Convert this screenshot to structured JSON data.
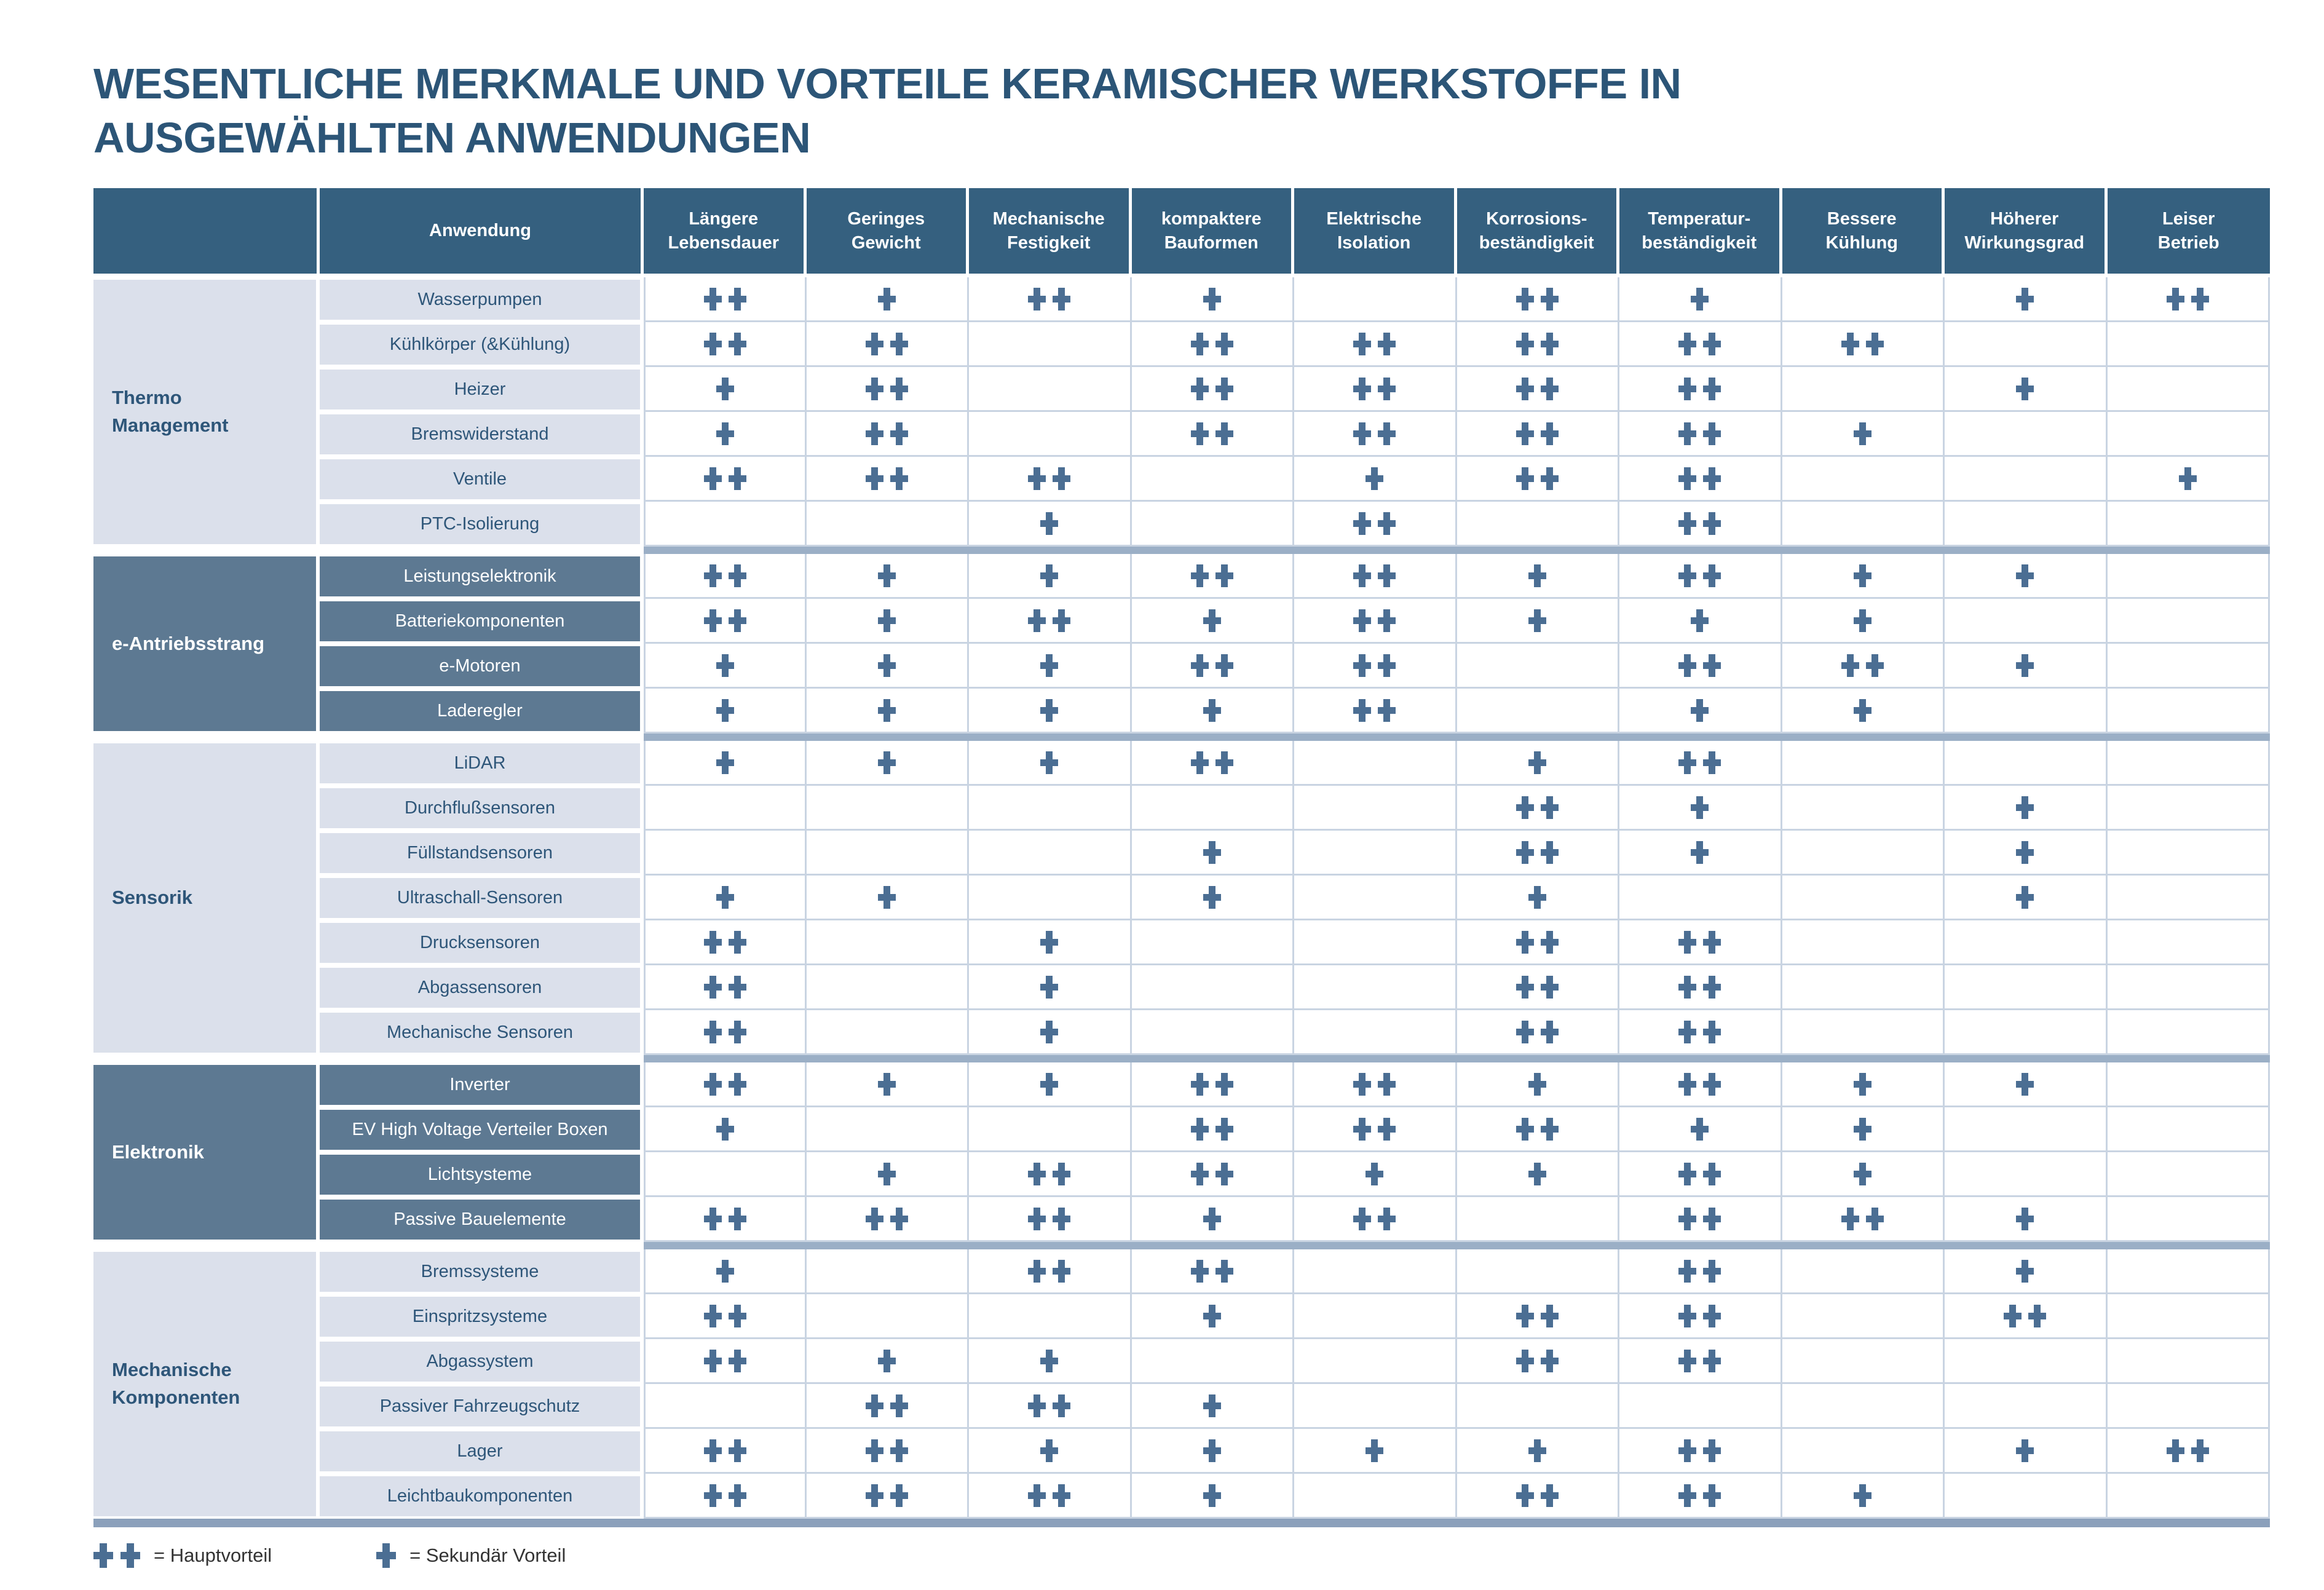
{
  "title": "WESENTLICHE MERKMALE UND VORTEILE KERAMISCHER WERKSTOFFE IN AUSGEWÄHLTEN ANWENDUNGEN",
  "table": {
    "application_header": "Anwendung",
    "feature_columns": [
      "Längere\nLebensdauer",
      "Geringes\nGewicht",
      "Mechanische\nFestigkeit",
      "kompaktere\nBauformen",
      "Elektrische\nIsolation",
      "Korrosions-\nbeständigkeit",
      "Temperatur-\nbeständigkeit",
      "Bessere\nKühlung",
      "Höherer\nWirkungsgrad",
      "Leiser\nBetrieb"
    ],
    "groups": [
      {
        "name": "Thermo\nManagement",
        "style": "light",
        "rows": [
          {
            "application": "Wasserpumpen",
            "values": [
              "++",
              "+",
              "++",
              "+",
              "",
              "++",
              "+",
              "",
              "+",
              "++"
            ]
          },
          {
            "application": "Kühlkörper (&Kühlung)",
            "values": [
              "++",
              "++",
              "",
              "++",
              "++",
              "++",
              "++",
              "++",
              "",
              ""
            ]
          },
          {
            "application": "Heizer",
            "values": [
              "+",
              "++",
              "",
              "++",
              "++",
              "++",
              "++",
              "",
              "+",
              ""
            ]
          },
          {
            "application": "Bremswiderstand",
            "values": [
              "+",
              "++",
              "",
              "++",
              "++",
              "++",
              "++",
              "+",
              "",
              ""
            ]
          },
          {
            "application": "Ventile",
            "values": [
              "++",
              "++",
              "++",
              "",
              "+",
              "++",
              "++",
              "",
              "",
              "+"
            ]
          },
          {
            "application": "PTC-Isolierung",
            "values": [
              "",
              "",
              "+",
              "",
              "++",
              "",
              "++",
              "",
              "",
              ""
            ]
          }
        ]
      },
      {
        "name": "e-Antriebsstrang",
        "style": "dark",
        "rows": [
          {
            "application": "Leistungselektronik",
            "values": [
              "++",
              "+",
              "+",
              "++",
              "++",
              "+",
              "++",
              "+",
              "+",
              ""
            ]
          },
          {
            "application": "Batteriekomponenten",
            "values": [
              "++",
              "+",
              "++",
              "+",
              "++",
              "+",
              "+",
              "+",
              "",
              ""
            ]
          },
          {
            "application": "e-Motoren",
            "values": [
              "+",
              "+",
              "+",
              "++",
              "++",
              "",
              "++",
              "++",
              "+",
              ""
            ]
          },
          {
            "application": "Laderegler",
            "values": [
              "+",
              "+",
              "+",
              "+",
              "++",
              "",
              "+",
              "+",
              "",
              ""
            ]
          }
        ]
      },
      {
        "name": "Sensorik",
        "style": "light",
        "rows": [
          {
            "application": "LiDAR",
            "values": [
              "+",
              "+",
              "+",
              "++",
              "",
              "+",
              "++",
              "",
              "",
              ""
            ]
          },
          {
            "application": "Durchflußsensoren",
            "values": [
              "",
              "",
              "",
              "",
              "",
              "++",
              "+",
              "",
              "+",
              ""
            ]
          },
          {
            "application": "Füllstandsensoren",
            "values": [
              "",
              "",
              "",
              "+",
              "",
              "++",
              "+",
              "",
              "+",
              ""
            ]
          },
          {
            "application": "Ultraschall-Sensoren",
            "values": [
              "+",
              "+",
              "",
              "+",
              "",
              "+",
              "",
              "",
              "+",
              ""
            ]
          },
          {
            "application": "Drucksensoren",
            "values": [
              "++",
              "",
              "+",
              "",
              "",
              "++",
              "++",
              "",
              "",
              ""
            ]
          },
          {
            "application": "Abgassensoren",
            "values": [
              "++",
              "",
              "+",
              "",
              "",
              "++",
              "++",
              "",
              "",
              ""
            ]
          },
          {
            "application": "Mechanische Sensoren",
            "values": [
              "++",
              "",
              "+",
              "",
              "",
              "++",
              "++",
              "",
              "",
              ""
            ]
          }
        ]
      },
      {
        "name": "Elektronik",
        "style": "dark",
        "rows": [
          {
            "application": "Inverter",
            "values": [
              "++",
              "+",
              "+",
              "++",
              "++",
              "+",
              "++",
              "+",
              "+",
              ""
            ]
          },
          {
            "application": "EV High Voltage Verteiler Boxen",
            "values": [
              "+",
              "",
              "",
              "++",
              "++",
              "++",
              "+",
              "+",
              "",
              ""
            ]
          },
          {
            "application": "Lichtsysteme",
            "values": [
              "",
              "+",
              "++",
              "++",
              "+",
              "+",
              "++",
              "+",
              "",
              ""
            ]
          },
          {
            "application": "Passive Bauelemente",
            "values": [
              "++",
              "++",
              "++",
              "+",
              "++",
              "",
              "++",
              "++",
              "+",
              ""
            ]
          }
        ]
      },
      {
        "name": "Mechanische\nKomponenten",
        "style": "light",
        "rows": [
          {
            "application": "Bremssysteme",
            "values": [
              "+",
              "",
              "++",
              "++",
              "",
              "",
              "++",
              "",
              "+",
              ""
            ]
          },
          {
            "application": "Einspritzsysteme",
            "values": [
              "++",
              "",
              "",
              "+",
              "",
              "++",
              "++",
              "",
              "++",
              ""
            ]
          },
          {
            "application": "Abgassystem",
            "values": [
              "++",
              "+",
              "+",
              "",
              "",
              "++",
              "++",
              "",
              "",
              ""
            ]
          },
          {
            "application": "Passiver Fahrzeugschutz",
            "values": [
              "",
              "++",
              "++",
              "+",
              "",
              "",
              "",
              "",
              "",
              ""
            ]
          },
          {
            "application": "Lager",
            "values": [
              "++",
              "++",
              "+",
              "+",
              "+",
              "+",
              "++",
              "",
              "+",
              "++"
            ]
          },
          {
            "application": "Leichtbaukomponenten",
            "values": [
              "++",
              "++",
              "++",
              "+",
              "",
              "++",
              "++",
              "+",
              "",
              ""
            ]
          }
        ]
      }
    ]
  },
  "legend": [
    {
      "symbol": "++",
      "label": "= Hauptvorteil"
    },
    {
      "symbol": "+",
      "label": "= Sekundär Vorteil"
    }
  ],
  "icons": {
    "plus_icon": "✚"
  },
  "colors": {
    "title": "#2C5577",
    "header_bg": "#35607F",
    "header_text": "#FFFFFF",
    "light_cell_bg": "#DBE0EB",
    "light_cell_text": "#2E5679",
    "dark_group_bg": "#5D7992",
    "dark_group_text": "#FFFFFF",
    "plus": "#4B6E93",
    "grid_line": "#C9D4E2",
    "group_separator": "#9BAFC6",
    "bottom_bar": "#8BA0BB",
    "legend_text": "#333333"
  }
}
